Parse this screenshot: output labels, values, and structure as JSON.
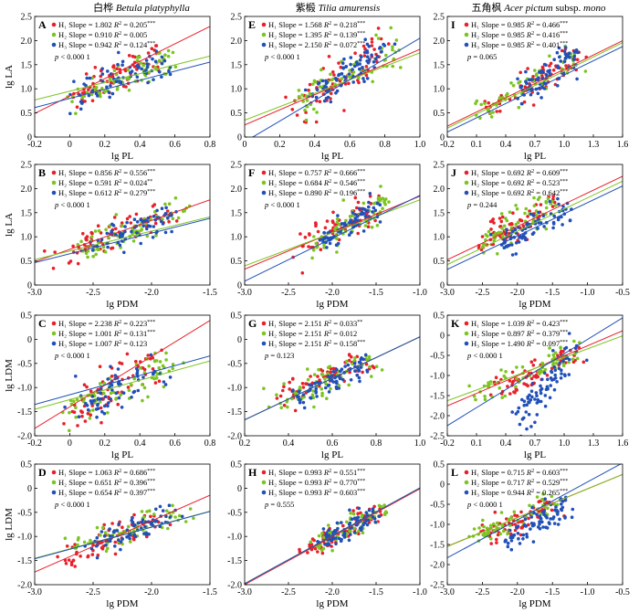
{
  "colors": {
    "H1": "#e8202a",
    "H2": "#7cc520",
    "H3": "#2050b8"
  },
  "species": [
    {
      "cn": "白桦",
      "latin": "Betula platyphylla"
    },
    {
      "cn": "紫椴",
      "latin": "Tilia amurensis"
    },
    {
      "cn": "五角枫",
      "latin": "Acer pictum",
      "suffix": "subsp.",
      "latin2": "mono"
    }
  ],
  "chart_data": [
    {
      "type": "scatter",
      "panel": "A",
      "xlabel": "lg PL",
      "ylabel": "lg LA",
      "xlim": [
        -0.2,
        0.8
      ],
      "ylim": [
        0,
        2.5
      ],
      "xticks": [
        "-0.2",
        "0",
        "0.2",
        "0.4",
        "0.6",
        "0.8"
      ],
      "yticks": [
        "0",
        "0.5",
        "1.0",
        "1.5",
        "2.0",
        "2.5"
      ],
      "series": [
        {
          "name": "H₁",
          "slope": "1.802",
          "r2": "0.205",
          "sig": "***",
          "b": 0.85,
          "cx": [
            0.0,
            0.5
          ],
          "cy": [
            0.85,
            1.7
          ],
          "s": 0.2,
          "n": 70
        },
        {
          "name": "H₂",
          "slope": "0.910",
          "r2": "0.005",
          "sig": "",
          "b": 0.95,
          "cx": [
            0.0,
            0.6
          ],
          "cy": [
            0.8,
            1.6
          ],
          "s": 0.15,
          "n": 70
        },
        {
          "name": "H₃",
          "slope": "0.942",
          "r2": "0.124",
          "sig": "***",
          "b": 0.8,
          "cx": [
            0.05,
            0.55
          ],
          "cy": [
            0.85,
            1.55
          ],
          "s": 0.15,
          "n": 70
        }
      ],
      "p": "p < 0.000 1"
    },
    {
      "type": "scatter",
      "panel": "E",
      "xlabel": "lg PL",
      "ylabel": "",
      "xlim": [
        0,
        1.0
      ],
      "ylim": [
        0,
        2.5
      ],
      "xticks": [
        "0",
        "0.2",
        "0.4",
        "0.6",
        "0.8",
        "1.0"
      ],
      "yticks": [
        "0",
        "0.5",
        "1.0",
        "1.5",
        "2.0",
        "2.5"
      ],
      "series": [
        {
          "name": "H₁",
          "slope": "1.568",
          "r2": "0.218",
          "sig": "***",
          "b": 0.25,
          "cx": [
            0.3,
            0.8
          ],
          "cy": [
            0.6,
            1.9
          ],
          "s": 0.2,
          "n": 70
        },
        {
          "name": "H₂",
          "slope": "1.395",
          "r2": "0.139",
          "sig": "***",
          "b": 0.35,
          "cx": [
            0.3,
            0.85
          ],
          "cy": [
            0.7,
            1.8
          ],
          "s": 0.2,
          "n": 70
        },
        {
          "name": "H₃",
          "slope": "2.150",
          "r2": "0.072",
          "sig": "***",
          "b": -0.1,
          "cx": [
            0.4,
            0.8
          ],
          "cy": [
            0.8,
            1.9
          ],
          "s": 0.15,
          "n": 80
        }
      ],
      "p": "p < 0.000 1"
    },
    {
      "type": "scatter",
      "panel": "I",
      "xlabel": "lg PL",
      "ylabel": "",
      "xlim": [
        -0.2,
        1.6
      ],
      "ylim": [
        0,
        2.5
      ],
      "xticks": [
        "-0.2",
        "0.1",
        "0.4",
        "0.7",
        "1.0",
        "1.3",
        "1.6"
      ],
      "yticks": [
        "0",
        "0.5",
        "1.0",
        "1.5",
        "2.0",
        "2.5"
      ],
      "series": [
        {
          "name": "H₁",
          "slope": "0.985",
          "r2": "0.466",
          "sig": "***",
          "b": 0.42,
          "cx": [
            0.2,
            1.1
          ],
          "cy": [
            0.5,
            1.7
          ],
          "s": 0.15,
          "n": 70
        },
        {
          "name": "H₂",
          "slope": "0.985",
          "r2": "0.416",
          "sig": "***",
          "b": 0.38,
          "cx": [
            0.1,
            1.1
          ],
          "cy": [
            0.5,
            1.7
          ],
          "s": 0.15,
          "n": 60
        },
        {
          "name": "H₃",
          "slope": "0.985",
          "r2": "0.401",
          "sig": "***",
          "b": 0.3,
          "cx": [
            0.5,
            1.1
          ],
          "cy": [
            0.8,
            1.7
          ],
          "s": 0.15,
          "n": 80
        }
      ],
      "p": "p = 0.065"
    },
    {
      "type": "scatter",
      "panel": "B",
      "xlabel": "lg PDM",
      "ylabel": "lg LA",
      "xlim": [
        -3.0,
        -1.5
      ],
      "ylim": [
        0,
        2.5
      ],
      "xticks": [
        "-3.0",
        "-2.5",
        "-2.0",
        "-1.5"
      ],
      "yticks": [
        "0",
        "0.5",
        "1.0",
        "1.5",
        "2.0",
        "2.5"
      ],
      "series": [
        {
          "name": "H₁",
          "slope": "0.856",
          "r2": "0.556",
          "sig": "***",
          "b": 3.05,
          "cx": [
            -2.8,
            -1.9
          ],
          "cy": [
            0.6,
            1.5
          ],
          "s": 0.15,
          "n": 70
        },
        {
          "name": "H₂",
          "slope": "0.591",
          "r2": "0.024",
          "sig": "**",
          "b": 2.3,
          "cx": [
            -2.6,
            -1.7
          ],
          "cy": [
            0.7,
            1.6
          ],
          "s": 0.15,
          "n": 70
        },
        {
          "name": "H₃",
          "slope": "0.612",
          "r2": "0.279",
          "sig": "***",
          "b": 2.3,
          "cx": [
            -2.5,
            -1.8
          ],
          "cy": [
            0.8,
            1.5
          ],
          "s": 0.15,
          "n": 70
        }
      ],
      "p": "p < 0.000 1"
    },
    {
      "type": "scatter",
      "panel": "F",
      "xlabel": "lg PDM",
      "ylabel": "",
      "xlim": [
        -3.0,
        -1.0
      ],
      "ylim": [
        0,
        2.5
      ],
      "xticks": [
        "-3.0",
        "-2.5",
        "-2.0",
        "-1.5",
        "-1.0"
      ],
      "yticks": [
        "0",
        "0.5",
        "1.0",
        "1.5",
        "2.0",
        "2.5"
      ],
      "series": [
        {
          "name": "H₁",
          "slope": "0.757",
          "r2": "0.666",
          "sig": "***",
          "b": 2.6,
          "cx": [
            -2.3,
            -1.5
          ],
          "cy": [
            0.8,
            1.7
          ],
          "s": 0.15,
          "n": 70
        },
        {
          "name": "H₂",
          "slope": "0.684",
          "r2": "0.546",
          "sig": "***",
          "b": 2.45,
          "cx": [
            -2.2,
            -1.4
          ],
          "cy": [
            0.8,
            1.7
          ],
          "s": 0.15,
          "n": 70
        },
        {
          "name": "H₃",
          "slope": "0.890",
          "r2": "0.196",
          "sig": "***",
          "b": 2.75,
          "cx": [
            -2.1,
            -1.5
          ],
          "cy": [
            0.9,
            1.6
          ],
          "s": 0.12,
          "n": 80
        }
      ],
      "p": "p < 0.000 1"
    },
    {
      "type": "scatter",
      "panel": "J",
      "xlabel": "lg PDM",
      "ylabel": "",
      "xlim": [
        -3.0,
        -0.5
      ],
      "ylim": [
        0,
        2.5
      ],
      "xticks": [
        "-3.0",
        "-2.5",
        "-2.0",
        "-1.5",
        "-1.0",
        "-0.5"
      ],
      "yticks": [
        "0",
        "0.5",
        "1.0",
        "1.5",
        "2.0",
        "2.5"
      ],
      "series": [
        {
          "name": "H₁",
          "slope": "0.692",
          "r2": "0.609",
          "sig": "***",
          "b": 2.6,
          "cx": [
            -2.5,
            -1.5
          ],
          "cy": [
            0.8,
            1.7
          ],
          "s": 0.15,
          "n": 70
        },
        {
          "name": "H₂",
          "slope": "0.692",
          "r2": "0.523",
          "sig": "***",
          "b": 2.5,
          "cx": [
            -2.6,
            -1.5
          ],
          "cy": [
            0.8,
            1.7
          ],
          "s": 0.15,
          "n": 60
        },
        {
          "name": "H₃",
          "slope": "0.692",
          "r2": "0.642",
          "sig": "***",
          "b": 2.4,
          "cx": [
            -2.2,
            -1.3
          ],
          "cy": [
            0.8,
            1.6
          ],
          "s": 0.15,
          "n": 80
        }
      ],
      "p": "p = 0.244"
    },
    {
      "type": "scatter",
      "panel": "C",
      "xlabel": "lg PL",
      "ylabel": "lg LDM",
      "xlim": [
        -0.2,
        0.8
      ],
      "ylim": [
        -2.0,
        0.5
      ],
      "xticks": [
        "-0.2",
        "0",
        "0.2",
        "0.4",
        "0.6",
        "0.8"
      ],
      "yticks": [
        "-2.0",
        "-1.5",
        "-1.0",
        "-0.5",
        "0",
        "0.5"
      ],
      "series": [
        {
          "name": "H₁",
          "slope": "2.238",
          "r2": "0.223",
          "sig": "***",
          "b": -1.4,
          "cx": [
            0.0,
            0.5
          ],
          "cy": [
            -1.6,
            -0.4
          ],
          "s": 0.2,
          "n": 70
        },
        {
          "name": "H₂",
          "slope": "1.001",
          "r2": "0.131",
          "sig": "***",
          "b": -1.25,
          "cx": [
            0.0,
            0.6
          ],
          "cy": [
            -1.5,
            -0.4
          ],
          "s": 0.2,
          "n": 70
        },
        {
          "name": "H₃",
          "slope": "1.007",
          "r2": "0.123",
          "sig": "",
          "b": -1.15,
          "cx": [
            0.05,
            0.55
          ],
          "cy": [
            -1.4,
            -0.5
          ],
          "s": 0.2,
          "n": 70
        }
      ],
      "p": "p < 0.000 1"
    },
    {
      "type": "scatter",
      "panel": "G",
      "xlabel": "lg PL",
      "ylabel": "",
      "xlim": [
        0.2,
        1.0
      ],
      "ylim": [
        -2.0,
        0.5
      ],
      "xticks": [
        "0.2",
        "0.4",
        "0.6",
        "0.8",
        "1.0"
      ],
      "yticks": [
        "-2.0",
        "-1.5",
        "-1.0",
        "-0.5",
        "0",
        "0.5"
      ],
      "series": [
        {
          "name": "H₁",
          "slope": "2.151",
          "r2": "0.033",
          "sig": "**",
          "b": -2.1,
          "cx": [
            0.35,
            0.75
          ],
          "cy": [
            -1.3,
            -0.4
          ],
          "s": 0.15,
          "n": 70
        },
        {
          "name": "H₂",
          "slope": "2.151",
          "r2": "0.012",
          "sig": "",
          "b": -2.1,
          "cx": [
            0.35,
            0.8
          ],
          "cy": [
            -1.3,
            -0.4
          ],
          "s": 0.15,
          "n": 70
        },
        {
          "name": "H₃",
          "slope": "2.151",
          "r2": "0.158",
          "sig": "***",
          "b": -2.1,
          "cx": [
            0.45,
            0.75
          ],
          "cy": [
            -1.2,
            -0.5
          ],
          "s": 0.12,
          "n": 80
        }
      ],
      "p": "p = 0.123"
    },
    {
      "type": "scatter",
      "panel": "K",
      "xlabel": "lg PL",
      "ylabel": "",
      "xlim": [
        -0.2,
        1.6
      ],
      "ylim": [
        -2.5,
        0.5
      ],
      "xticks": [
        "-0.2",
        "0.1",
        "0.4",
        "0.7",
        "1.0",
        "1.3",
        "1.6"
      ],
      "yticks": [
        "-2.5",
        "-2.0",
        "-1.5",
        "-1.0",
        "-0.5",
        "0",
        "0.5"
      ],
      "series": [
        {
          "name": "H₁",
          "slope": "1.039",
          "r2": "0.423",
          "sig": "***",
          "b": -1.55,
          "cx": [
            0.3,
            1.1
          ],
          "cy": [
            -1.5,
            -0.4
          ],
          "s": 0.15,
          "n": 70
        },
        {
          "name": "H₂",
          "slope": "0.897",
          "r2": "0.379",
          "sig": "***",
          "b": -1.45,
          "cx": [
            0.1,
            1.1
          ],
          "cy": [
            -1.5,
            -0.4
          ],
          "s": 0.15,
          "n": 60
        },
        {
          "name": "H₃",
          "slope": "1.490",
          "r2": "0.097",
          "sig": "***",
          "b": -1.95,
          "cx": [
            0.5,
            1.1
          ],
          "cy": [
            -2.2,
            -0.4
          ],
          "s": 0.25,
          "n": 80
        }
      ],
      "p": "p < 0.000 1"
    },
    {
      "type": "scatter",
      "panel": "D",
      "xlabel": "lg PDM",
      "ylabel": "lg LDM",
      "xlim": [
        -3.0,
        -1.5
      ],
      "ylim": [
        -2.0,
        0.5
      ],
      "xticks": [
        "-3.0",
        "-2.5",
        "-2.0",
        "-1.5"
      ],
      "yticks": [
        "-2.0",
        "-1.5",
        "-1.0",
        "-0.5",
        "0",
        "0.5"
      ],
      "series": [
        {
          "name": "H₁",
          "slope": "1.063",
          "r2": "0.686",
          "sig": "***",
          "b": 1.45,
          "cx": [
            -2.8,
            -1.9
          ],
          "cy": [
            -1.6,
            -0.5
          ],
          "s": 0.12,
          "n": 70
        },
        {
          "name": "H₂",
          "slope": "0.651",
          "r2": "0.396",
          "sig": "***",
          "b": 0.5,
          "cx": [
            -2.6,
            -1.7
          ],
          "cy": [
            -1.2,
            -0.5
          ],
          "s": 0.12,
          "n": 70
        },
        {
          "name": "H₃",
          "slope": "0.654",
          "r2": "0.397",
          "sig": "***",
          "b": 0.5,
          "cx": [
            -2.5,
            -1.8
          ],
          "cy": [
            -1.2,
            -0.5
          ],
          "s": 0.12,
          "n": 70
        }
      ],
      "p": "p < 0.000 1"
    },
    {
      "type": "scatter",
      "panel": "H",
      "xlabel": "lg PDM",
      "ylabel": "",
      "xlim": [
        -3.0,
        -1.0
      ],
      "ylim": [
        -2.0,
        0.5
      ],
      "xticks": [
        "-3.0",
        "-2.5",
        "-2.0",
        "-1.5",
        "-1.0"
      ],
      "yticks": [
        "-2.0",
        "-1.5",
        "-1.0",
        "-0.5",
        "0",
        "0.5"
      ],
      "series": [
        {
          "name": "H₁",
          "slope": "0.993",
          "r2": "0.551",
          "sig": "***",
          "b": 0.98,
          "cx": [
            -2.3,
            -1.5
          ],
          "cy": [
            -1.3,
            -0.5
          ],
          "s": 0.1,
          "n": 70
        },
        {
          "name": "H₂",
          "slope": "0.993",
          "r2": "0.770",
          "sig": "***",
          "b": 1.0,
          "cx": [
            -2.2,
            -1.4
          ],
          "cy": [
            -1.2,
            -0.4
          ],
          "s": 0.1,
          "n": 70
        },
        {
          "name": "H₃",
          "slope": "0.993",
          "r2": "0.603",
          "sig": "***",
          "b": 1.0,
          "cx": [
            -2.1,
            -1.5
          ],
          "cy": [
            -1.1,
            -0.5
          ],
          "s": 0.1,
          "n": 80
        }
      ],
      "p": "p = 0.555"
    },
    {
      "type": "scatter",
      "panel": "L",
      "xlabel": "lg PDM",
      "ylabel": "",
      "xlim": [
        -3.0,
        -0.5
      ],
      "ylim": [
        -2.5,
        0.5
      ],
      "xticks": [
        "-3.0",
        "-2.5",
        "-2.0",
        "-1.5",
        "-1.0",
        "-0.5"
      ],
      "yticks": [
        "-2.5",
        "-2.0",
        "-1.5",
        "-1.0",
        "-0.5",
        "0",
        "0.5"
      ],
      "series": [
        {
          "name": "H₁",
          "slope": "0.715",
          "r2": "0.603",
          "sig": "***",
          "b": 0.6,
          "cx": [
            -2.5,
            -1.5
          ],
          "cy": [
            -1.3,
            -0.5
          ],
          "s": 0.12,
          "n": 70
        },
        {
          "name": "H₂",
          "slope": "0.717",
          "r2": "0.529",
          "sig": "***",
          "b": 0.6,
          "cx": [
            -2.6,
            -1.5
          ],
          "cy": [
            -1.3,
            -0.5
          ],
          "s": 0.12,
          "n": 60
        },
        {
          "name": "H₃",
          "slope": "0.944",
          "r2": "0.265",
          "sig": "***",
          "b": 1.0,
          "cx": [
            -2.2,
            -1.3
          ],
          "cy": [
            -1.4,
            -0.6
          ],
          "s": 0.2,
          "n": 80
        }
      ],
      "p": "p < 0.000 1"
    }
  ]
}
